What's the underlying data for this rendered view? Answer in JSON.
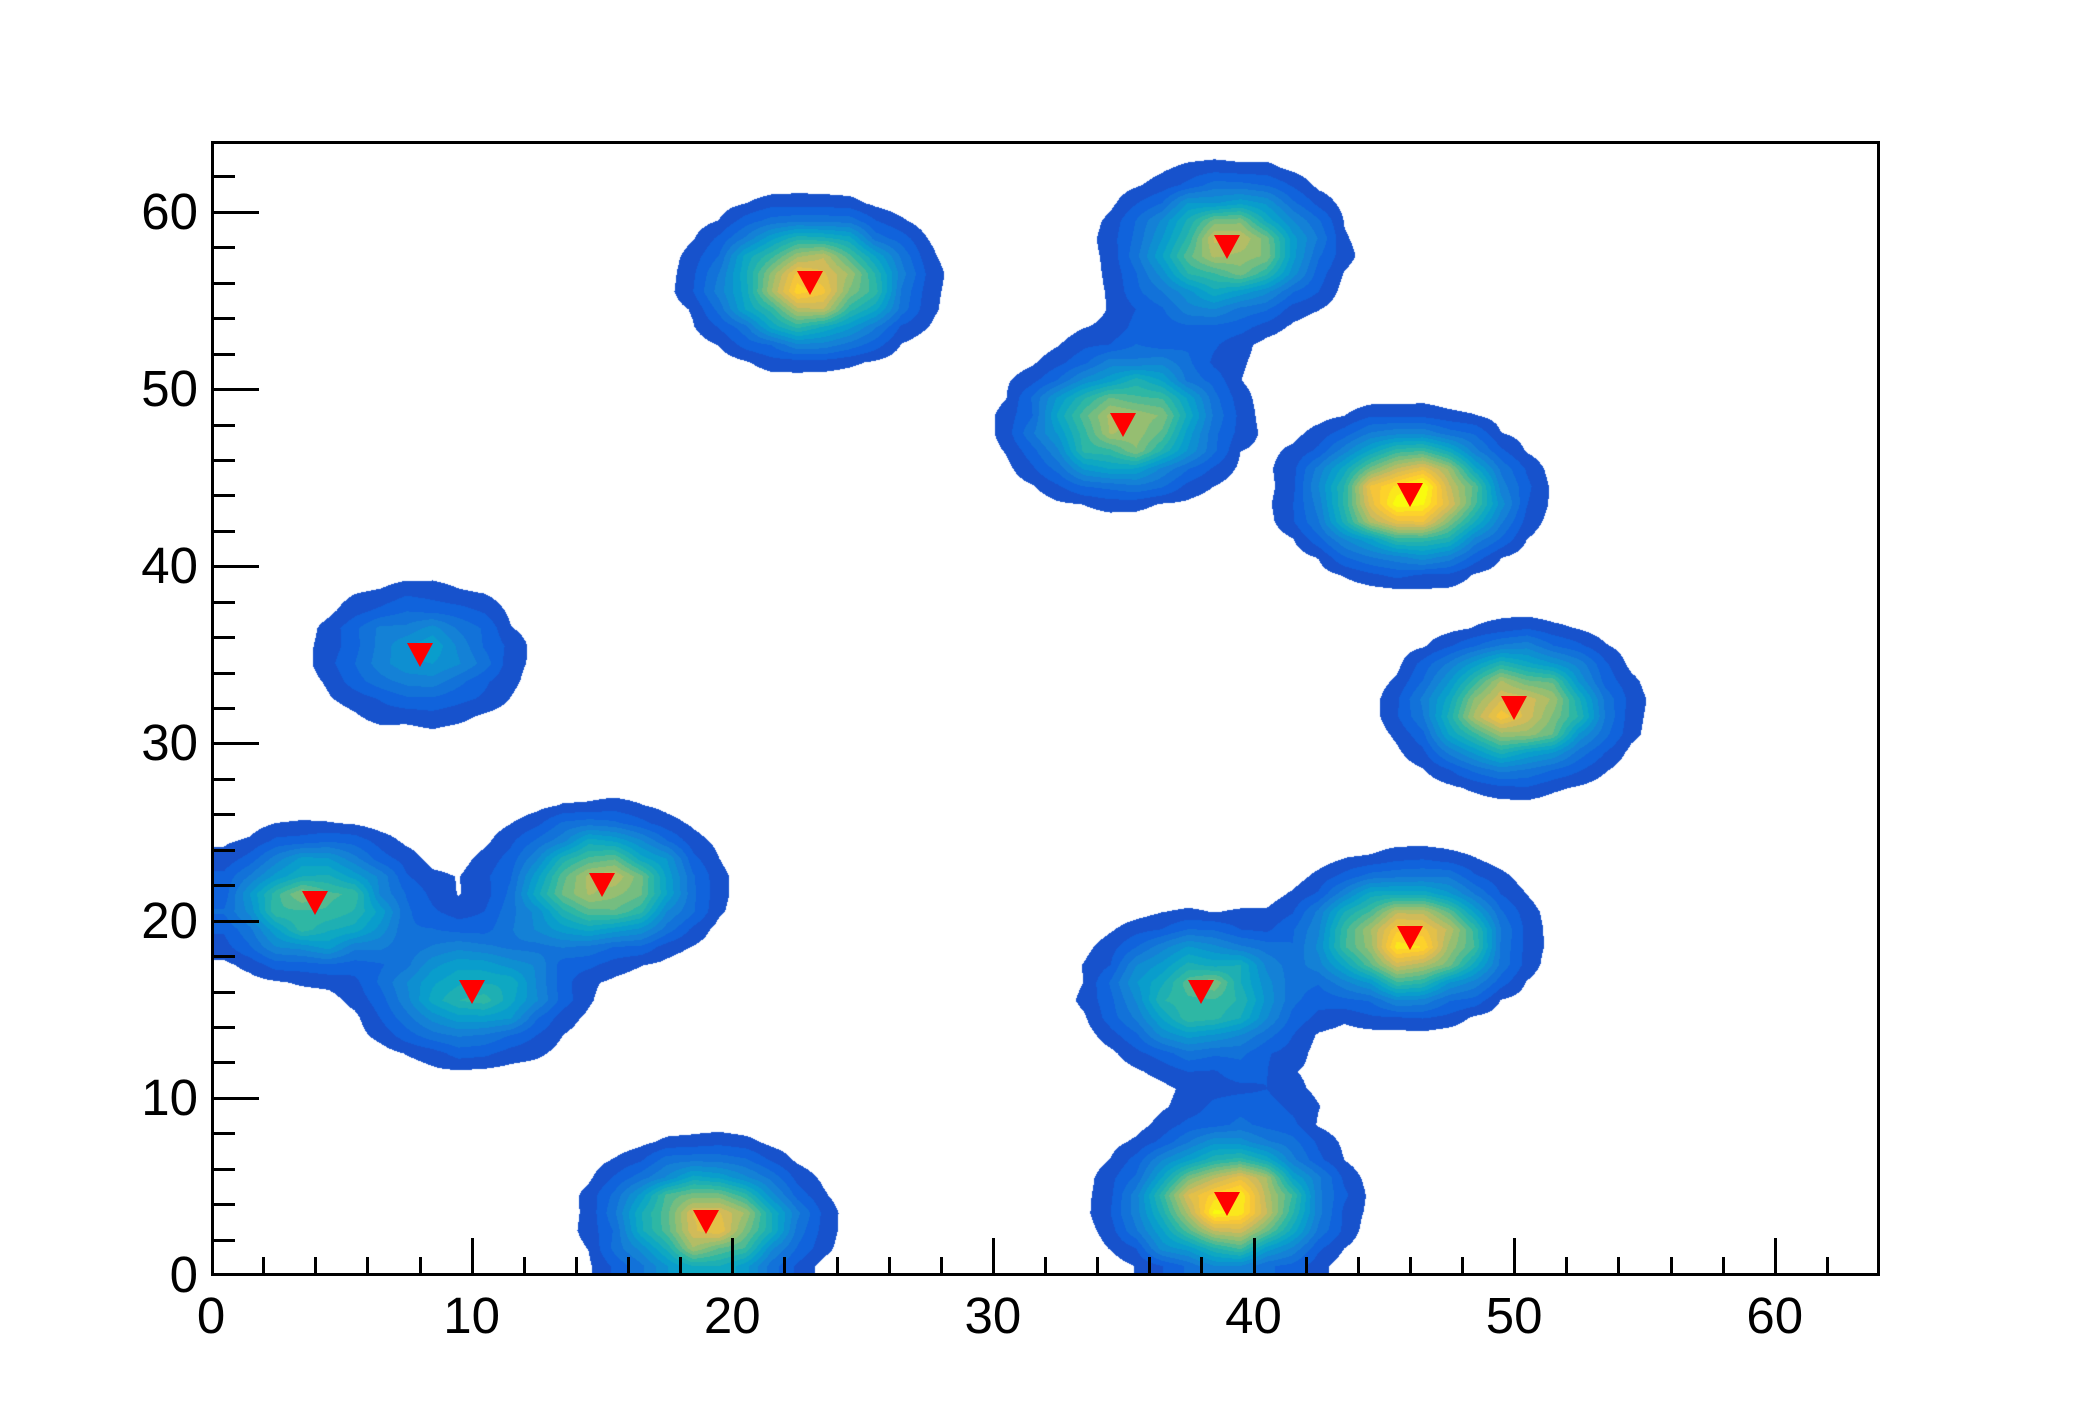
{
  "figure": {
    "title": "",
    "background_color": "#ffffff",
    "frame_color": "#000000",
    "tick_color": "#000000",
    "label_color": "#000000"
  },
  "chart_data": {
    "type": "heatmap",
    "subtype": "filled-contour-gaussian-peaks",
    "title": "",
    "xlabel": "",
    "ylabel": "",
    "grid": false,
    "legend": "none",
    "x_axis": {
      "min": 0,
      "max": 64,
      "major_step": 10,
      "minor_step": 2,
      "tick_labels": [
        "0",
        "10",
        "20",
        "30",
        "40",
        "50",
        "60"
      ]
    },
    "y_axis": {
      "min": 0,
      "max": 64,
      "major_step": 10,
      "minor_step": 2,
      "tick_labels": [
        "0",
        "10",
        "20",
        "30",
        "40",
        "50",
        "60"
      ]
    },
    "n_contour_levels": 20,
    "lowest_visible_level_fraction": 0.05,
    "palette": {
      "name": "bird",
      "stops": [
        "#352A87",
        "#0F5CDD",
        "#1481D6",
        "#06A4CA",
        "#2EB7A4",
        "#87BF77",
        "#D1BB59",
        "#FEC832",
        "#F9FB0E"
      ]
    },
    "peak_sigma": 2.1,
    "peaks": [
      {
        "x": 23,
        "y": 56,
        "amplitude": 0.87,
        "marker": true
      },
      {
        "x": 39,
        "y": 58,
        "amplitude": 0.7,
        "marker": true
      },
      {
        "x": 35,
        "y": 48,
        "amplitude": 0.72,
        "marker": true
      },
      {
        "x": 46,
        "y": 44,
        "amplitude": 1.02,
        "marker": true
      },
      {
        "x": 8,
        "y": 35,
        "amplitude": 0.33,
        "marker": true
      },
      {
        "x": 50,
        "y": 32,
        "amplitude": 0.82,
        "marker": true
      },
      {
        "x": 4,
        "y": 21,
        "amplitude": 0.58,
        "marker": true
      },
      {
        "x": 15,
        "y": 22,
        "amplitude": 0.7,
        "marker": true
      },
      {
        "x": 10,
        "y": 16,
        "amplitude": 0.46,
        "marker": true
      },
      {
        "x": 38,
        "y": 16,
        "amplitude": 0.58,
        "marker": true
      },
      {
        "x": 46,
        "y": 19,
        "amplitude": 0.92,
        "marker": true
      },
      {
        "x": 19,
        "y": 3,
        "amplitude": 0.78,
        "marker": true
      },
      {
        "x": 39,
        "y": 4,
        "amplitude": 0.97,
        "marker": true
      },
      {
        "x": 36.8,
        "y": 53,
        "amplitude": 0.08,
        "marker": false
      },
      {
        "x": 39.8,
        "y": 10,
        "amplitude": 0.085,
        "marker": false
      }
    ],
    "marker_style": {
      "shape": "triangle-down",
      "color": "#FF0000"
    }
  }
}
